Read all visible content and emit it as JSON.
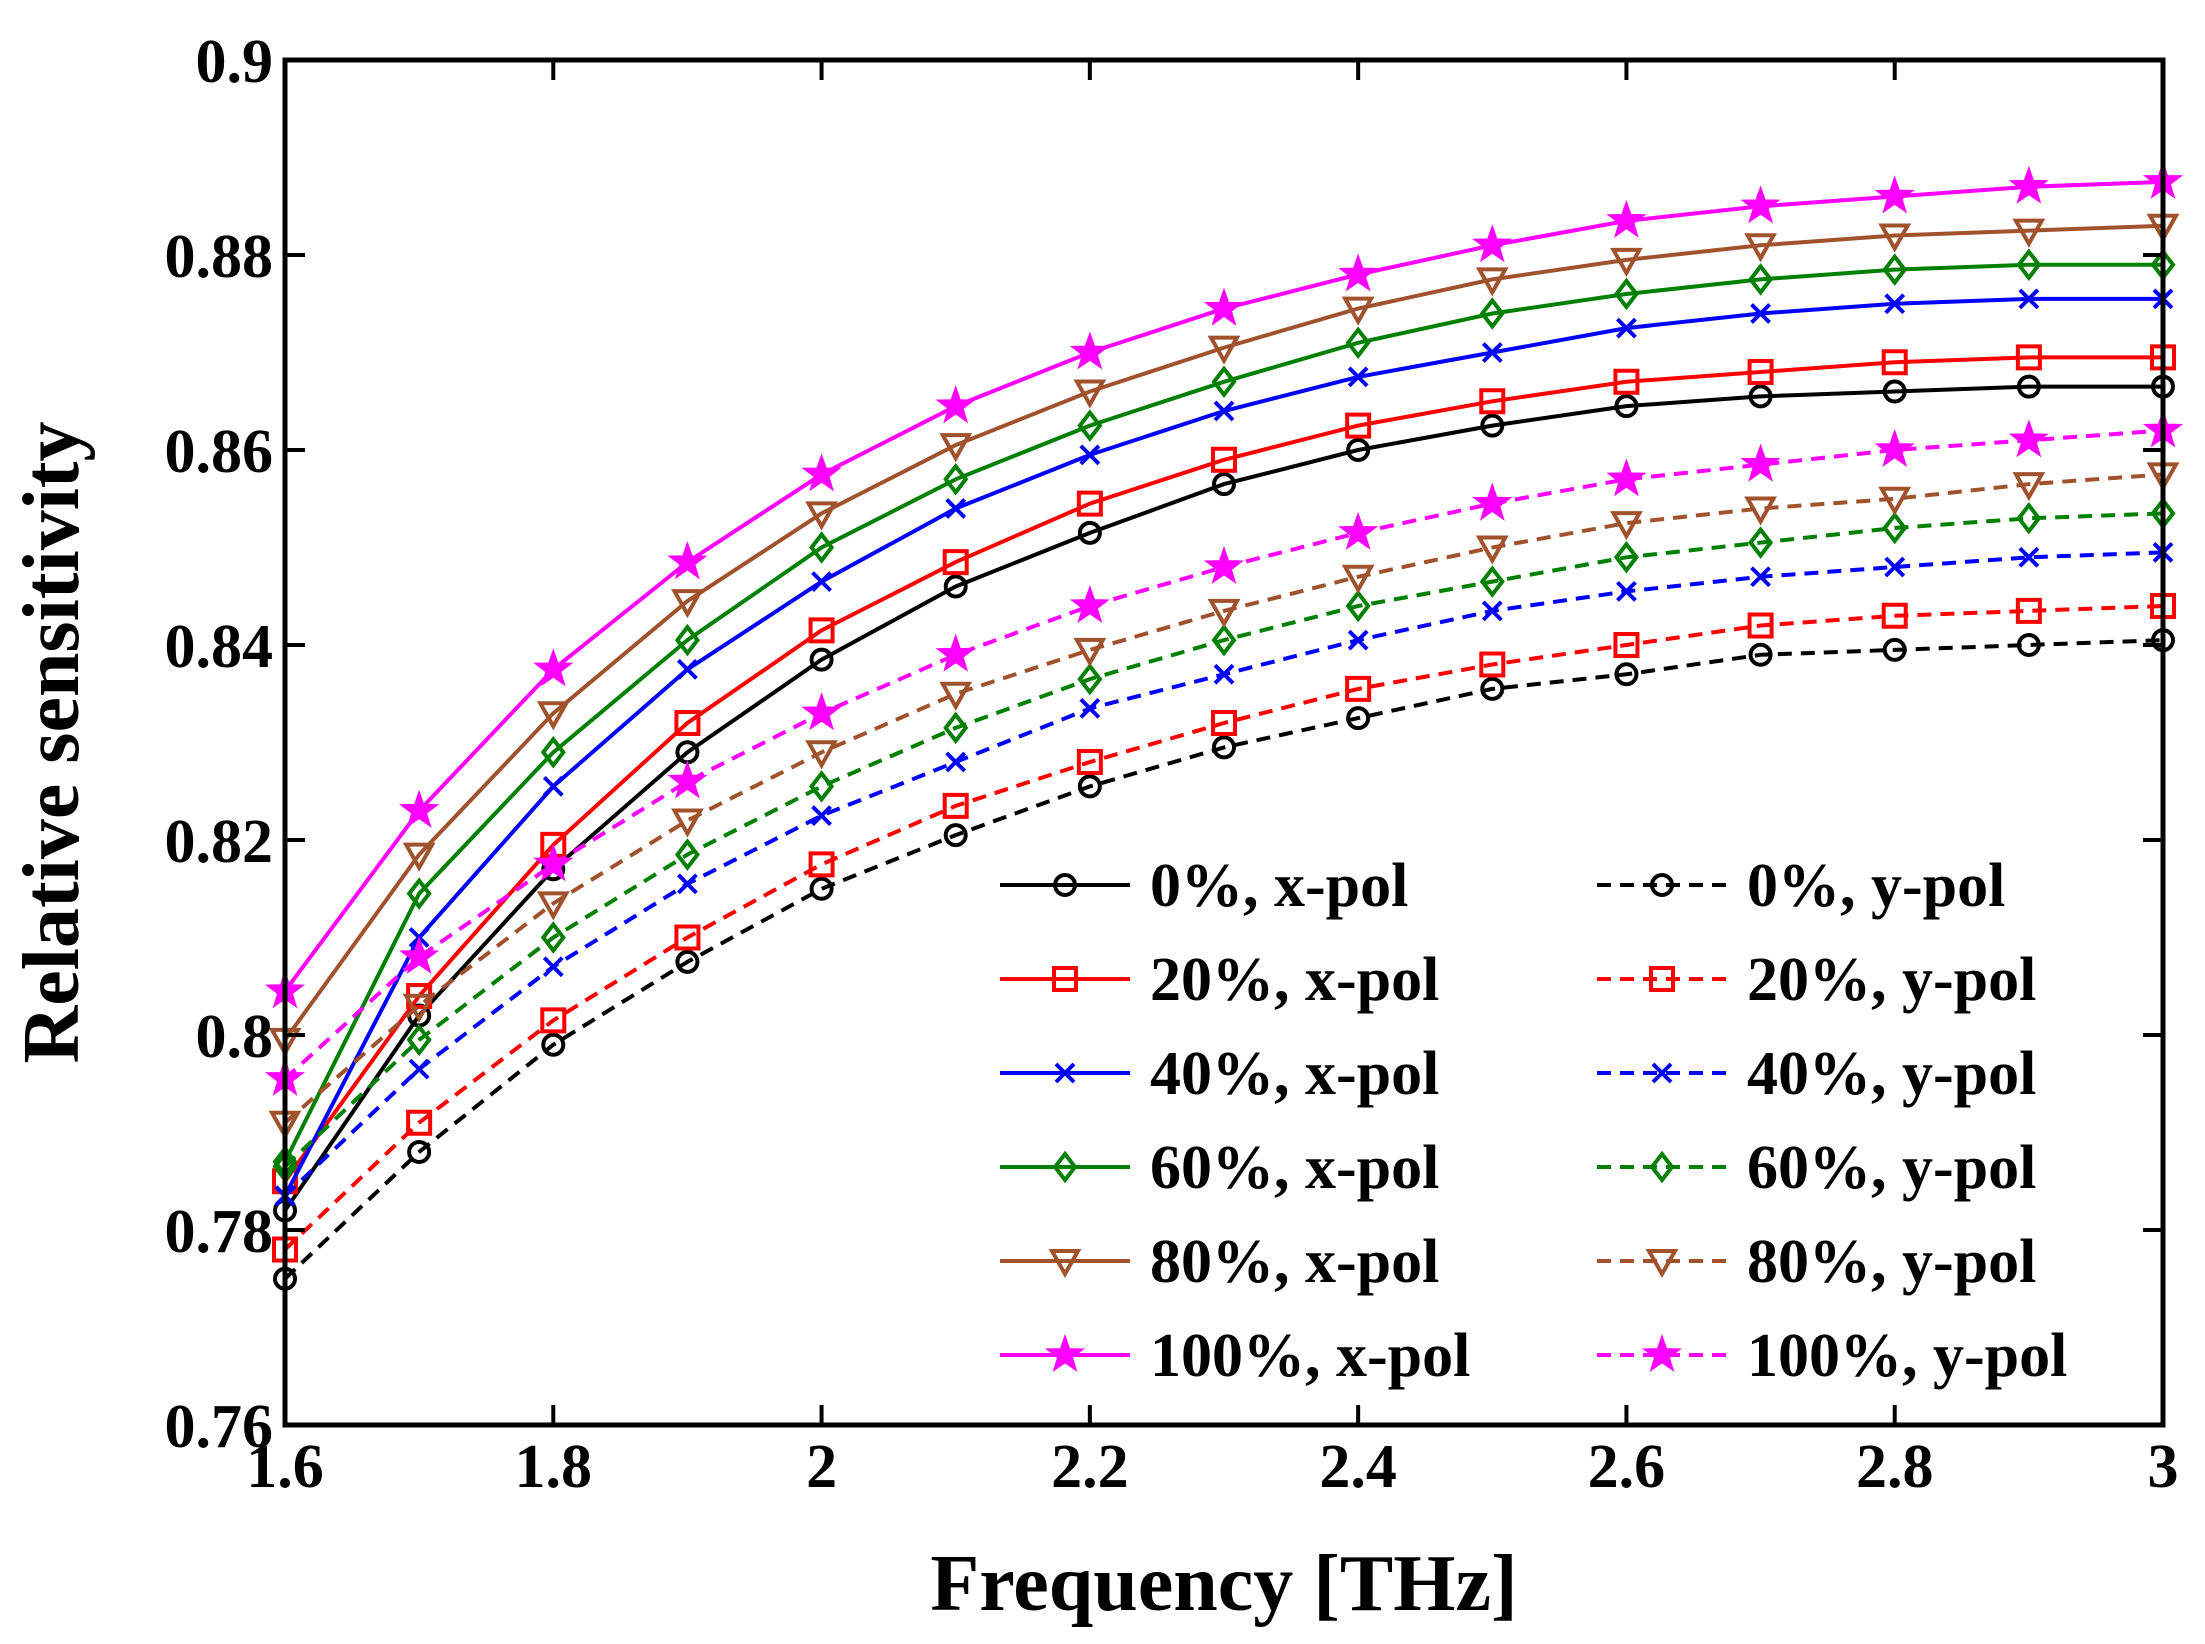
{
  "chart_data": {
    "type": "line",
    "title": "",
    "xlabel": "Frequency [THz]",
    "ylabel": "Relative sensitivity",
    "xlim": [
      1.6,
      3
    ],
    "ylim": [
      0.76,
      0.9
    ],
    "xticks": [
      1.6,
      1.8,
      2,
      2.2,
      2.4,
      2.6,
      2.8,
      3
    ],
    "xtick_labels": [
      "1.6",
      "1.8",
      "2",
      "2.2",
      "2.4",
      "2.6",
      "2.8",
      "3"
    ],
    "yticks": [
      0.76,
      0.78,
      0.8,
      0.82,
      0.84,
      0.86,
      0.88,
      0.9
    ],
    "ytick_labels": [
      "0.76",
      "0.78",
      "0.8",
      "0.82",
      "0.84",
      "0.86",
      "0.88",
      "0.9"
    ],
    "grid": false,
    "legend_position": "bottom-right",
    "legend_columns": 2,
    "x": [
      1.6,
      1.7,
      1.8,
      1.9,
      2.0,
      2.1,
      2.2,
      2.3,
      2.4,
      2.5,
      2.6,
      2.7,
      2.8,
      2.9,
      3.0
    ],
    "series": [
      {
        "name": "0%, x-pol",
        "color": "#000000",
        "dash": "solid",
        "marker": "circle",
        "values": [
          0.782,
          0.802,
          0.817,
          0.829,
          0.8385,
          0.846,
          0.8515,
          0.8565,
          0.86,
          0.8625,
          0.8645,
          0.8655,
          0.866,
          0.8665,
          0.8665
        ]
      },
      {
        "name": "20%, x-pol",
        "color": "#ff0000",
        "dash": "solid",
        "marker": "square",
        "values": [
          0.785,
          0.804,
          0.8195,
          0.832,
          0.8415,
          0.8485,
          0.8545,
          0.859,
          0.8625,
          0.865,
          0.867,
          0.868,
          0.869,
          0.8695,
          0.8695
        ]
      },
      {
        "name": "40%, x-pol",
        "color": "#0000ff",
        "dash": "solid",
        "marker": "x",
        "values": [
          0.7835,
          0.81,
          0.8255,
          0.8375,
          0.8465,
          0.854,
          0.8595,
          0.864,
          0.8675,
          0.87,
          0.8725,
          0.874,
          0.875,
          0.8755,
          0.8755
        ]
      },
      {
        "name": "60%, x-pol",
        "color": "#008000",
        "dash": "solid",
        "marker": "diamond",
        "values": [
          0.787,
          0.8145,
          0.829,
          0.8405,
          0.85,
          0.857,
          0.8625,
          0.867,
          0.871,
          0.874,
          0.876,
          0.8775,
          0.8785,
          0.879,
          0.879
        ]
      },
      {
        "name": "80%, x-pol",
        "color": "#a0522d",
        "dash": "solid",
        "marker": "triangle-down",
        "values": [
          0.7995,
          0.8185,
          0.833,
          0.8445,
          0.8535,
          0.8605,
          0.866,
          0.8705,
          0.8745,
          0.8775,
          0.8795,
          0.881,
          0.882,
          0.8825,
          0.883
        ]
      },
      {
        "name": "100%, x-pol",
        "color": "#ff00ff",
        "dash": "solid",
        "marker": "star",
        "values": [
          0.8045,
          0.823,
          0.8375,
          0.8485,
          0.8575,
          0.8645,
          0.87,
          0.8745,
          0.878,
          0.881,
          0.8835,
          0.885,
          0.886,
          0.887,
          0.8875
        ]
      },
      {
        "name": "0%, y-pol",
        "color": "#000000",
        "dash": "dashed",
        "marker": "circle",
        "values": [
          0.775,
          0.788,
          0.799,
          0.8075,
          0.815,
          0.8205,
          0.8255,
          0.8295,
          0.8325,
          0.8355,
          0.837,
          0.839,
          0.8395,
          0.84,
          0.8405
        ]
      },
      {
        "name": "20%, y-pol",
        "color": "#ff0000",
        "dash": "dashed",
        "marker": "square",
        "values": [
          0.778,
          0.791,
          0.8015,
          0.81,
          0.8175,
          0.8235,
          0.828,
          0.832,
          0.8355,
          0.838,
          0.84,
          0.842,
          0.843,
          0.8435,
          0.844
        ]
      },
      {
        "name": "40%, y-pol",
        "color": "#0000ff",
        "dash": "dashed",
        "marker": "x",
        "values": [
          0.7835,
          0.7965,
          0.807,
          0.8155,
          0.8225,
          0.828,
          0.8335,
          0.837,
          0.8405,
          0.8435,
          0.8455,
          0.847,
          0.848,
          0.849,
          0.8495
        ]
      },
      {
        "name": "60%, y-pol",
        "color": "#008000",
        "dash": "dashed",
        "marker": "diamond",
        "values": [
          0.7865,
          0.7995,
          0.81,
          0.8185,
          0.8255,
          0.8315,
          0.8365,
          0.8405,
          0.844,
          0.8465,
          0.849,
          0.8505,
          0.852,
          0.853,
          0.8535
        ]
      },
      {
        "name": "80%, y-pol",
        "color": "#a0522d",
        "dash": "dashed",
        "marker": "triangle-down",
        "values": [
          0.791,
          0.803,
          0.8135,
          0.822,
          0.829,
          0.835,
          0.8395,
          0.8435,
          0.847,
          0.85,
          0.8525,
          0.854,
          0.855,
          0.8565,
          0.8575
        ]
      },
      {
        "name": "100%, y-pol",
        "color": "#ff00ff",
        "dash": "dashed",
        "marker": "star",
        "values": [
          0.7955,
          0.808,
          0.8175,
          0.826,
          0.833,
          0.839,
          0.844,
          0.848,
          0.8515,
          0.8545,
          0.857,
          0.8585,
          0.86,
          0.861,
          0.862
        ]
      }
    ]
  }
}
